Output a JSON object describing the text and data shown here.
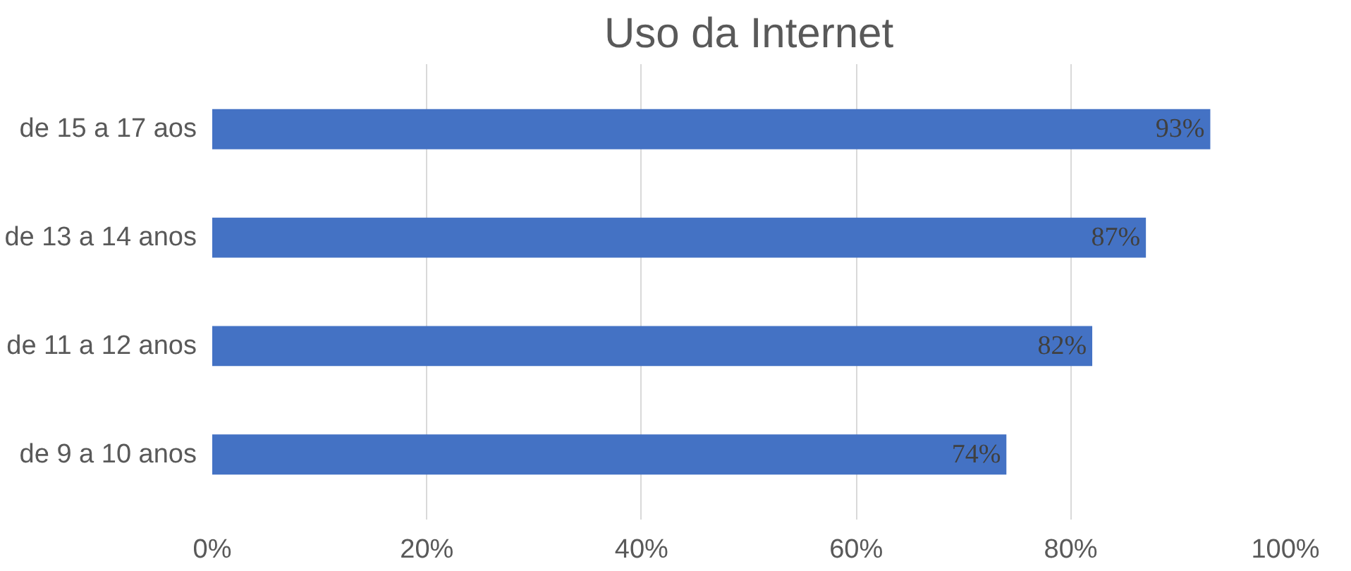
{
  "chart_data": {
    "type": "bar",
    "orientation": "horizontal",
    "title": "Uso da Internet",
    "categories": [
      "de 15 a 17 aos",
      "de 13 a 14 anos",
      "de 11 a 12 anos",
      "de 9 a 10 anos"
    ],
    "values": [
      93,
      87,
      82,
      74
    ],
    "color": "#4472c4",
    "value_labels": [
      "93%",
      "87%",
      "82%",
      "74%"
    ],
    "xlim": [
      0,
      100
    ],
    "xticks": [
      {
        "value": 0,
        "label": "0%"
      },
      {
        "value": 20,
        "label": "20%"
      },
      {
        "value": 40,
        "label": "40%"
      },
      {
        "value": 60,
        "label": "60%"
      },
      {
        "value": 80,
        "label": "80%"
      },
      {
        "value": 100,
        "label": "100%"
      }
    ],
    "grid": "x"
  }
}
